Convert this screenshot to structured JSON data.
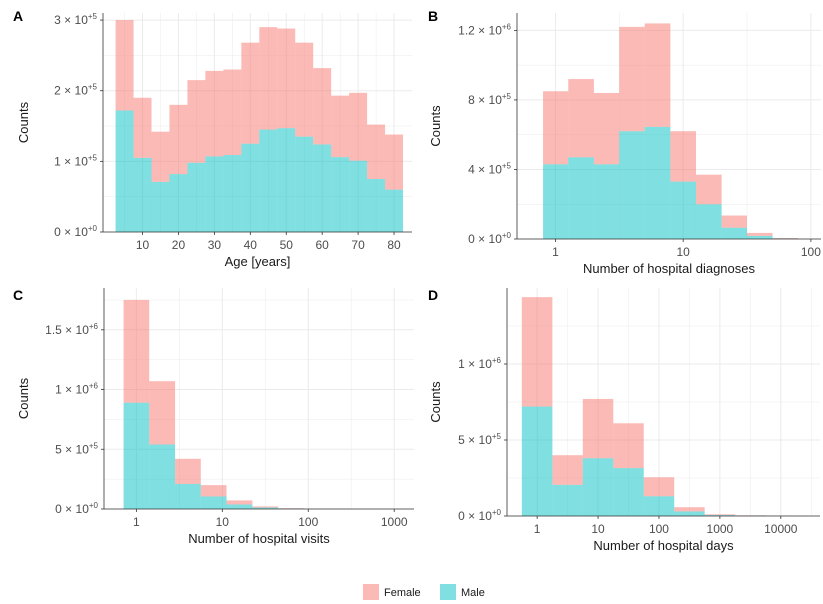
{
  "colors": {
    "female": "#F8766D",
    "male": "#00BFC4",
    "grid": "#ebebeb",
    "axis": "#333333"
  },
  "legend": {
    "items": [
      {
        "label": "Female",
        "color": "#F8766D"
      },
      {
        "label": "Male",
        "color": "#00BFC4"
      }
    ]
  },
  "chart_data": [
    {
      "panel": "A",
      "type": "bar",
      "stacked": true,
      "xscale": "linear",
      "xlabel": "Age [years]",
      "ylabel": "Counts",
      "xlim": [
        -1,
        85
      ],
      "ylim": [
        0,
        310000
      ],
      "xticks": [
        10,
        20,
        30,
        40,
        50,
        60,
        70,
        80
      ],
      "yticks": [
        {
          "value": 0,
          "mantissa": "0",
          "exp": "+0"
        },
        {
          "value": 100000,
          "mantissa": "1",
          "exp": "+5"
        },
        {
          "value": 200000,
          "mantissa": "2",
          "exp": "+5"
        },
        {
          "value": 300000,
          "mantissa": "3",
          "exp": "+5"
        }
      ],
      "bins": [
        {
          "x0": 2.5,
          "x1": 7.5,
          "male": 172000,
          "female": 128000
        },
        {
          "x0": 7.5,
          "x1": 12.5,
          "male": 105000,
          "female": 85000
        },
        {
          "x0": 12.5,
          "x1": 17.5,
          "male": 71000,
          "female": 71000
        },
        {
          "x0": 17.5,
          "x1": 22.5,
          "male": 82000,
          "female": 98000
        },
        {
          "x0": 22.5,
          "x1": 27.5,
          "male": 98000,
          "female": 117000
        },
        {
          "x0": 27.5,
          "x1": 32.5,
          "male": 107000,
          "female": 121000
        },
        {
          "x0": 32.5,
          "x1": 37.5,
          "male": 109000,
          "female": 121000
        },
        {
          "x0": 37.5,
          "x1": 42.5,
          "male": 125000,
          "female": 143000
        },
        {
          "x0": 42.5,
          "x1": 47.5,
          "male": 145000,
          "female": 145000
        },
        {
          "x0": 47.5,
          "x1": 52.5,
          "male": 147000,
          "female": 141000
        },
        {
          "x0": 52.5,
          "x1": 57.5,
          "male": 135000,
          "female": 133000
        },
        {
          "x0": 57.5,
          "x1": 62.5,
          "male": 124000,
          "female": 108000
        },
        {
          "x0": 62.5,
          "x1": 67.5,
          "male": 106000,
          "female": 87000
        },
        {
          "x0": 67.5,
          "x1": 72.5,
          "male": 101000,
          "female": 96000
        },
        {
          "x0": 72.5,
          "x1": 77.5,
          "male": 75000,
          "female": 77000
        },
        {
          "x0": 77.5,
          "x1": 82.5,
          "male": 60000,
          "female": 78000
        }
      ]
    },
    {
      "panel": "B",
      "type": "bar",
      "stacked": true,
      "xscale": "log10",
      "xlabel": "Number of hospital diagnoses",
      "ylabel": "Counts",
      "xlim": [
        0.5,
        120
      ],
      "ylim": [
        0,
        1300000
      ],
      "xticks": [
        1,
        10,
        100
      ],
      "yticks": [
        {
          "value": 0,
          "mantissa": "0",
          "exp": "+0"
        },
        {
          "value": 400000,
          "mantissa": "4",
          "exp": "+5"
        },
        {
          "value": 800000,
          "mantissa": "8",
          "exp": "+5"
        },
        {
          "value": 1200000,
          "mantissa": "1.2",
          "exp": "+6"
        }
      ],
      "bins": [
        {
          "x0": 0.8,
          "x1": 1.26,
          "male": 430000,
          "female": 420000
        },
        {
          "x0": 1.26,
          "x1": 2.0,
          "male": 470000,
          "female": 450000
        },
        {
          "x0": 2.0,
          "x1": 3.16,
          "male": 430000,
          "female": 410000
        },
        {
          "x0": 3.16,
          "x1": 5.0,
          "male": 620000,
          "female": 600000
        },
        {
          "x0": 5.0,
          "x1": 7.94,
          "male": 645000,
          "female": 595000
        },
        {
          "x0": 7.94,
          "x1": 12.6,
          "male": 330000,
          "female": 290000
        },
        {
          "x0": 12.6,
          "x1": 20.0,
          "male": 200000,
          "female": 170000
        },
        {
          "x0": 20.0,
          "x1": 31.6,
          "male": 65000,
          "female": 70000
        },
        {
          "x0": 31.6,
          "x1": 50.1,
          "male": 18000,
          "female": 17000
        },
        {
          "x0": 50.1,
          "x1": 79.4,
          "male": 3000,
          "female": 2500
        }
      ]
    },
    {
      "panel": "C",
      "type": "bar",
      "stacked": true,
      "xscale": "log10",
      "xlabel": "Number of hospital visits",
      "ylabel": "Counts",
      "xlim": [
        0.42,
        1700
      ],
      "ylim": [
        0,
        1850000
      ],
      "xticks": [
        1,
        10,
        100,
        1000
      ],
      "yticks": [
        {
          "value": 0,
          "mantissa": "0",
          "exp": "+0"
        },
        {
          "value": 500000,
          "mantissa": "5",
          "exp": "+5"
        },
        {
          "value": 1000000,
          "mantissa": "1",
          "exp": "+6"
        },
        {
          "value": 1500000,
          "mantissa": "1.5",
          "exp": "+6"
        }
      ],
      "bins": [
        {
          "x0": 0.71,
          "x1": 1.41,
          "male": 890000,
          "female": 860000
        },
        {
          "x0": 1.41,
          "x1": 2.82,
          "male": 540000,
          "female": 530000
        },
        {
          "x0": 2.82,
          "x1": 5.62,
          "male": 210000,
          "female": 210000
        },
        {
          "x0": 5.62,
          "x1": 11.2,
          "male": 105000,
          "female": 95000
        },
        {
          "x0": 11.2,
          "x1": 22.4,
          "male": 38000,
          "female": 34000
        },
        {
          "x0": 22.4,
          "x1": 44.7,
          "male": 12000,
          "female": 10000
        },
        {
          "x0": 44.7,
          "x1": 89.1,
          "male": 3500,
          "female": 3000
        },
        {
          "x0": 89.1,
          "x1": 178,
          "male": 1000,
          "female": 900
        },
        {
          "x0": 178,
          "x1": 355,
          "male": 300,
          "female": 250
        }
      ]
    },
    {
      "panel": "D",
      "type": "bar",
      "stacked": true,
      "xscale": "log10",
      "xlabel": "Number of hospital days",
      "ylabel": "Counts",
      "xlim": [
        0.32,
        44000
      ],
      "ylim": [
        0,
        1500000
      ],
      "xticks": [
        1,
        10,
        100,
        1000,
        10000
      ],
      "yticks": [
        {
          "value": 0,
          "mantissa": "0",
          "exp": "+0"
        },
        {
          "value": 500000,
          "mantissa": "5",
          "exp": "+5"
        },
        {
          "value": 1000000,
          "mantissa": "1",
          "exp": "+6"
        }
      ],
      "bins": [
        {
          "x0": 0.56,
          "x1": 1.78,
          "male": 720000,
          "female": 720000
        },
        {
          "x0": 1.78,
          "x1": 5.62,
          "male": 205000,
          "female": 195000
        },
        {
          "x0": 5.62,
          "x1": 17.8,
          "male": 380000,
          "female": 390000
        },
        {
          "x0": 17.8,
          "x1": 56.2,
          "male": 315000,
          "female": 295000
        },
        {
          "x0": 56.2,
          "x1": 178,
          "male": 130000,
          "female": 125000
        },
        {
          "x0": 178,
          "x1": 562,
          "male": 30000,
          "female": 28000
        },
        {
          "x0": 562,
          "x1": 1778,
          "male": 6000,
          "female": 5000
        },
        {
          "x0": 1778,
          "x1": 5623,
          "male": 2500,
          "female": 2000
        },
        {
          "x0": 5623,
          "x1": 17783,
          "male": 1000,
          "female": 800
        }
      ]
    }
  ]
}
